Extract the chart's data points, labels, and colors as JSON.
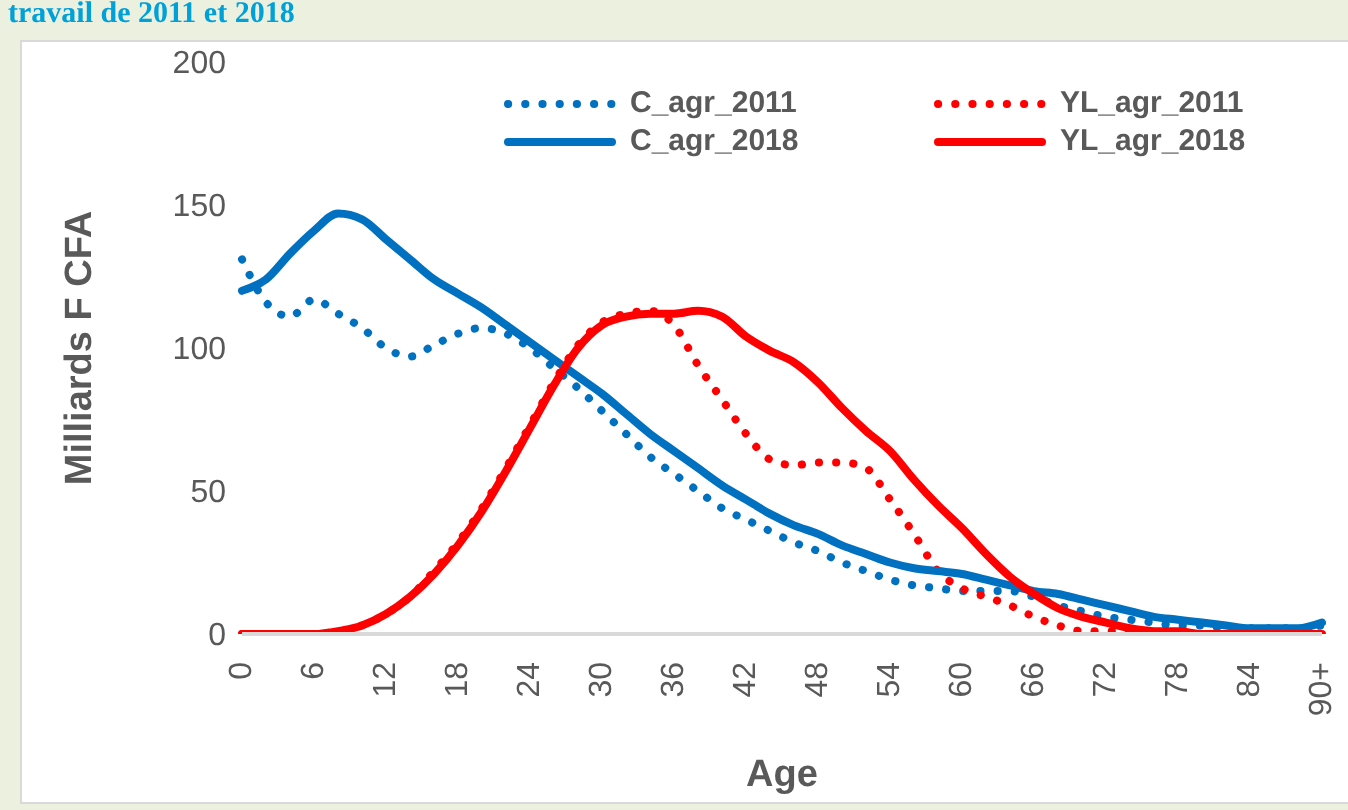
{
  "chart_data": {
    "type": "line",
    "title": "travail de 2011 et 2018",
    "xlabel": "Age",
    "ylabel": "Milliards F CFA",
    "categories": [
      "0",
      null,
      null,
      "6",
      null,
      null,
      "12",
      null,
      null,
      "18",
      null,
      null,
      "24",
      null,
      null,
      "30",
      null,
      null,
      "36",
      null,
      null,
      "42",
      null,
      null,
      "48",
      null,
      null,
      "54",
      null,
      null,
      "60",
      null,
      null,
      "66",
      null,
      null,
      "72",
      null,
      null,
      "78",
      null,
      null,
      "84",
      null,
      null,
      "90+"
    ],
    "series": [
      {
        "name": "C_agr_2011",
        "color": "#0070c0",
        "line_style": "dotted",
        "values": [
          131,
          116,
          111,
          117,
          112,
          107,
          100,
          97,
          101,
          105,
          107,
          105,
          100,
          93,
          86,
          78,
          70,
          62,
          56,
          50,
          44,
          40,
          36,
          32,
          29,
          25,
          22,
          19,
          17,
          16,
          15,
          15,
          15,
          13,
          10,
          8,
          6,
          5,
          4,
          3,
          3,
          2,
          2,
          2,
          2,
          3
        ]
      },
      {
        "name": "YL_agr_2011",
        "color": "#ff0000",
        "line_style": "dotted",
        "values": [
          0,
          0,
          0,
          0,
          1,
          3,
          7,
          13,
          22,
          32,
          44,
          58,
          73,
          88,
          101,
          109,
          112,
          113,
          108,
          94,
          82,
          70,
          61,
          59,
          60,
          60,
          58,
          47,
          35,
          22,
          16,
          13,
          10,
          6,
          3,
          1,
          1,
          1,
          0,
          0,
          0,
          0,
          0,
          0,
          0,
          0
        ]
      },
      {
        "name": "C_agr_2018",
        "color": "#0070c0",
        "line_style": "solid",
        "values": [
          120,
          124,
          133,
          141,
          147,
          145,
          138,
          131,
          124,
          119,
          114,
          108,
          102,
          96,
          90,
          84,
          77,
          70,
          64,
          58,
          52,
          47,
          42,
          38,
          35,
          31,
          28,
          25,
          23,
          22,
          21,
          19,
          17,
          15,
          14,
          12,
          10,
          8,
          6,
          5,
          4,
          3,
          2,
          2,
          2,
          4
        ]
      },
      {
        "name": "YL_agr_2018",
        "color": "#ff0000",
        "line_style": "solid",
        "values": [
          0,
          0,
          0,
          0,
          1,
          3,
          7,
          13,
          21,
          31,
          43,
          57,
          72,
          87,
          100,
          108,
          111,
          112,
          112,
          113,
          111,
          104,
          99,
          95,
          88,
          79,
          71,
          64,
          54,
          45,
          37,
          28,
          20,
          14,
          9,
          6,
          4,
          2,
          1,
          1,
          0,
          0,
          0,
          0,
          0,
          0
        ]
      }
    ],
    "ylim": [
      0,
      200
    ],
    "yticks": [
      0,
      50,
      100,
      150,
      200
    ],
    "grid": false,
    "legend": "top",
    "marker": "none"
  }
}
